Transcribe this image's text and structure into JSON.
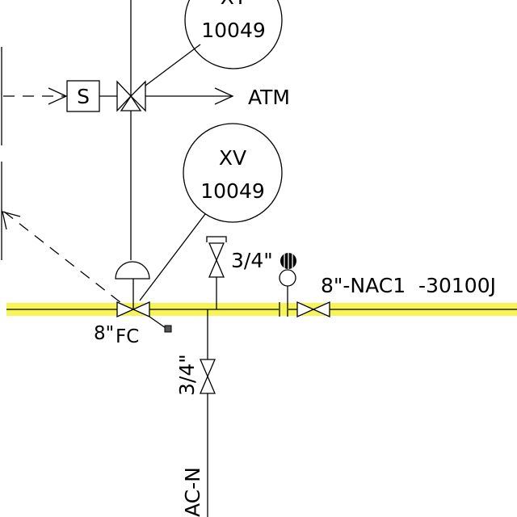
{
  "instruments": {
    "top": {
      "tag_letters": "XY",
      "tag_number": "10049"
    },
    "valve": {
      "tag_letters": "XV",
      "tag_number": "10049"
    }
  },
  "solenoid": {
    "label": "S"
  },
  "vent": {
    "label": "ATM"
  },
  "valve": {
    "size_label": "8\"",
    "fail_label": "FC"
  },
  "line": {
    "label": "8\"-NAC1  -30100J"
  },
  "vents": {
    "top_size": "3/4\"",
    "bottom_size": "3/4\"",
    "bottom_line_label": "AC-N"
  },
  "colors": {
    "highlight": "#f7f45a",
    "line": "#000000"
  }
}
